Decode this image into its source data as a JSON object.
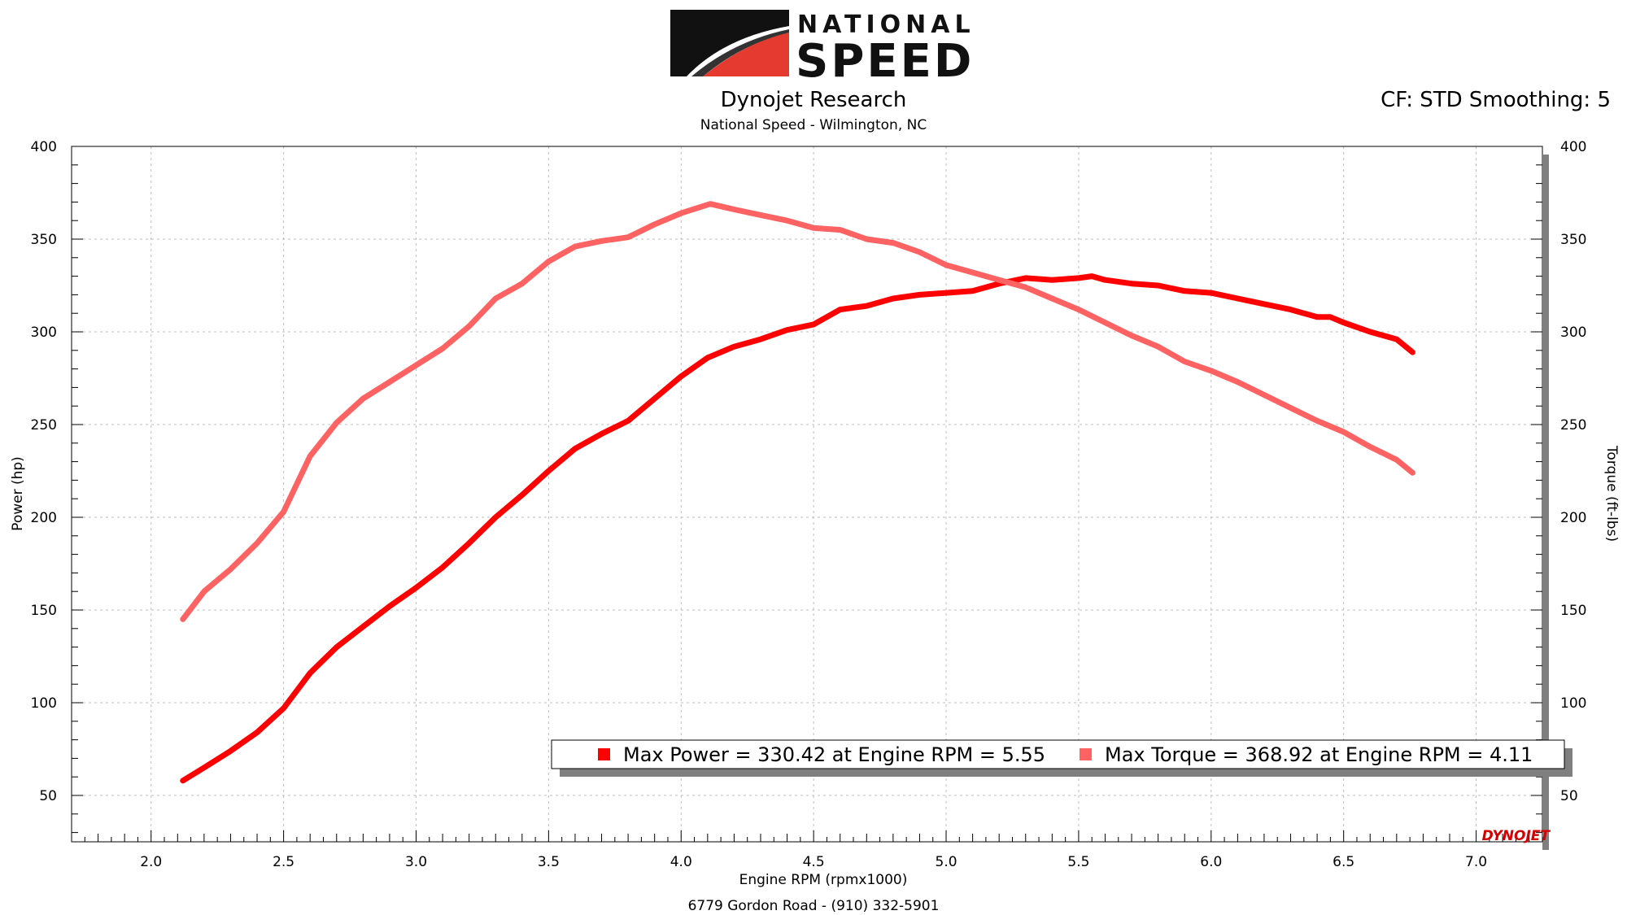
{
  "brand": {
    "logo_top": "NATIONAL",
    "logo_bottom": "SPEED",
    "watermark": "DYNOJET"
  },
  "header": {
    "title": "Dynojet Research",
    "subtitle": "National Speed - Wilmington, NC",
    "correction": "CF: STD Smoothing: 5"
  },
  "footer": {
    "address": "6779 Gordon Road - (910) 332-5901"
  },
  "colors": {
    "power": "#ff0000",
    "torque": "#ff6262",
    "grid": "#bdbdbd",
    "legend_shadow": "#7f7f7f"
  },
  "chart_data": {
    "type": "line",
    "xlabel": "Engine RPM (rpmx1000)",
    "ylabel_left": "Power (hp)",
    "ylabel_right": "Torque (ft-lbs)",
    "xlim": [
      1.7,
      7.25
    ],
    "ylim": [
      25,
      400
    ],
    "x_ticks": [
      "2.0",
      "2.5",
      "3.0",
      "3.5",
      "4.0",
      "4.5",
      "5.0",
      "5.5",
      "6.0",
      "6.5",
      "7.0"
    ],
    "y_ticks": [
      "50",
      "100",
      "150",
      "200",
      "250",
      "300",
      "350",
      "400"
    ],
    "grid": true,
    "legend_position": "bottom-right",
    "legend": [
      "Max Power = 330.42 at Engine RPM = 5.55",
      "Max Torque = 368.92 at Engine RPM = 4.11"
    ],
    "series": [
      {
        "color": "#ff0000",
        "points": [
          [
            2.12,
            58
          ],
          [
            2.2,
            65
          ],
          [
            2.3,
            74
          ],
          [
            2.4,
            84
          ],
          [
            2.5,
            97
          ],
          [
            2.6,
            116
          ],
          [
            2.7,
            130
          ],
          [
            2.8,
            141
          ],
          [
            2.9,
            152
          ],
          [
            3.0,
            162
          ],
          [
            3.1,
            173
          ],
          [
            3.2,
            186
          ],
          [
            3.3,
            200
          ],
          [
            3.4,
            212
          ],
          [
            3.5,
            225
          ],
          [
            3.6,
            237
          ],
          [
            3.7,
            245
          ],
          [
            3.8,
            252
          ],
          [
            3.9,
            264
          ],
          [
            4.0,
            276
          ],
          [
            4.1,
            286
          ],
          [
            4.2,
            292
          ],
          [
            4.3,
            296
          ],
          [
            4.4,
            301
          ],
          [
            4.5,
            304
          ],
          [
            4.6,
            312
          ],
          [
            4.7,
            314
          ],
          [
            4.8,
            318
          ],
          [
            4.9,
            320
          ],
          [
            5.0,
            321
          ],
          [
            5.1,
            322
          ],
          [
            5.2,
            326
          ],
          [
            5.3,
            329
          ],
          [
            5.4,
            328
          ],
          [
            5.5,
            329
          ],
          [
            5.55,
            330
          ],
          [
            5.6,
            328
          ],
          [
            5.7,
            326
          ],
          [
            5.8,
            325
          ],
          [
            5.9,
            322
          ],
          [
            6.0,
            321
          ],
          [
            6.1,
            318
          ],
          [
            6.2,
            315
          ],
          [
            6.3,
            312
          ],
          [
            6.4,
            308
          ],
          [
            6.45,
            308
          ],
          [
            6.5,
            305
          ],
          [
            6.6,
            300
          ],
          [
            6.7,
            296
          ],
          [
            6.76,
            289
          ]
        ]
      },
      {
        "color": "#ff6262",
        "points": [
          [
            2.12,
            145
          ],
          [
            2.2,
            160
          ],
          [
            2.3,
            172
          ],
          [
            2.4,
            186
          ],
          [
            2.5,
            203
          ],
          [
            2.6,
            233
          ],
          [
            2.7,
            251
          ],
          [
            2.8,
            264
          ],
          [
            2.9,
            273
          ],
          [
            3.0,
            282
          ],
          [
            3.1,
            291
          ],
          [
            3.2,
            303
          ],
          [
            3.3,
            318
          ],
          [
            3.4,
            326
          ],
          [
            3.5,
            338
          ],
          [
            3.6,
            346
          ],
          [
            3.7,
            349
          ],
          [
            3.8,
            351
          ],
          [
            3.9,
            358
          ],
          [
            4.0,
            364
          ],
          [
            4.11,
            369
          ],
          [
            4.2,
            366
          ],
          [
            4.3,
            363
          ],
          [
            4.4,
            360
          ],
          [
            4.5,
            356
          ],
          [
            4.6,
            355
          ],
          [
            4.7,
            350
          ],
          [
            4.8,
            348
          ],
          [
            4.9,
            343
          ],
          [
            5.0,
            336
          ],
          [
            5.1,
            332
          ],
          [
            5.2,
            328
          ],
          [
            5.3,
            324
          ],
          [
            5.4,
            318
          ],
          [
            5.5,
            312
          ],
          [
            5.6,
            305
          ],
          [
            5.7,
            298
          ],
          [
            5.8,
            292
          ],
          [
            5.9,
            284
          ],
          [
            6.0,
            279
          ],
          [
            6.1,
            273
          ],
          [
            6.2,
            266
          ],
          [
            6.3,
            259
          ],
          [
            6.4,
            252
          ],
          [
            6.5,
            246
          ],
          [
            6.6,
            238
          ],
          [
            6.7,
            231
          ],
          [
            6.76,
            224
          ]
        ]
      }
    ]
  }
}
